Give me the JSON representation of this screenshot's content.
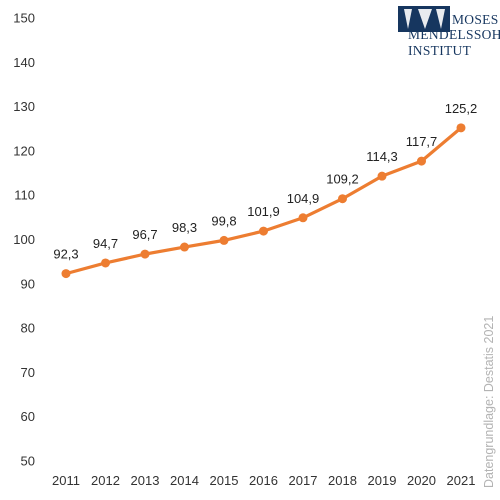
{
  "chart_data": {
    "type": "line",
    "categories": [
      "2011",
      "2012",
      "2013",
      "2014",
      "2015",
      "2016",
      "2017",
      "2018",
      "2019",
      "2020",
      "2021"
    ],
    "values": [
      92.3,
      94.7,
      96.7,
      98.3,
      99.8,
      101.9,
      104.9,
      109.2,
      114.3,
      117.7,
      125.2
    ],
    "value_labels": [
      "92,3",
      "94,7",
      "96,7",
      "98,3",
      "99,8",
      "101,9",
      "104,9",
      "109,2",
      "114,3",
      "117,7",
      "125,2"
    ],
    "yticks": [
      50,
      60,
      70,
      80,
      90,
      100,
      110,
      120,
      130,
      140,
      150
    ],
    "ylim": [
      50,
      150
    ],
    "grid": false,
    "legend": "none",
    "line_color": "#ed7d31",
    "title": "",
    "xlabel": "",
    "ylabel": ""
  },
  "source_note": "Datengrundlage: Destatis 2021",
  "logo": {
    "line1": "MOSES",
    "line2": "MENDELSSOHN",
    "line3": "INSTITUT",
    "color": "#16365f"
  }
}
